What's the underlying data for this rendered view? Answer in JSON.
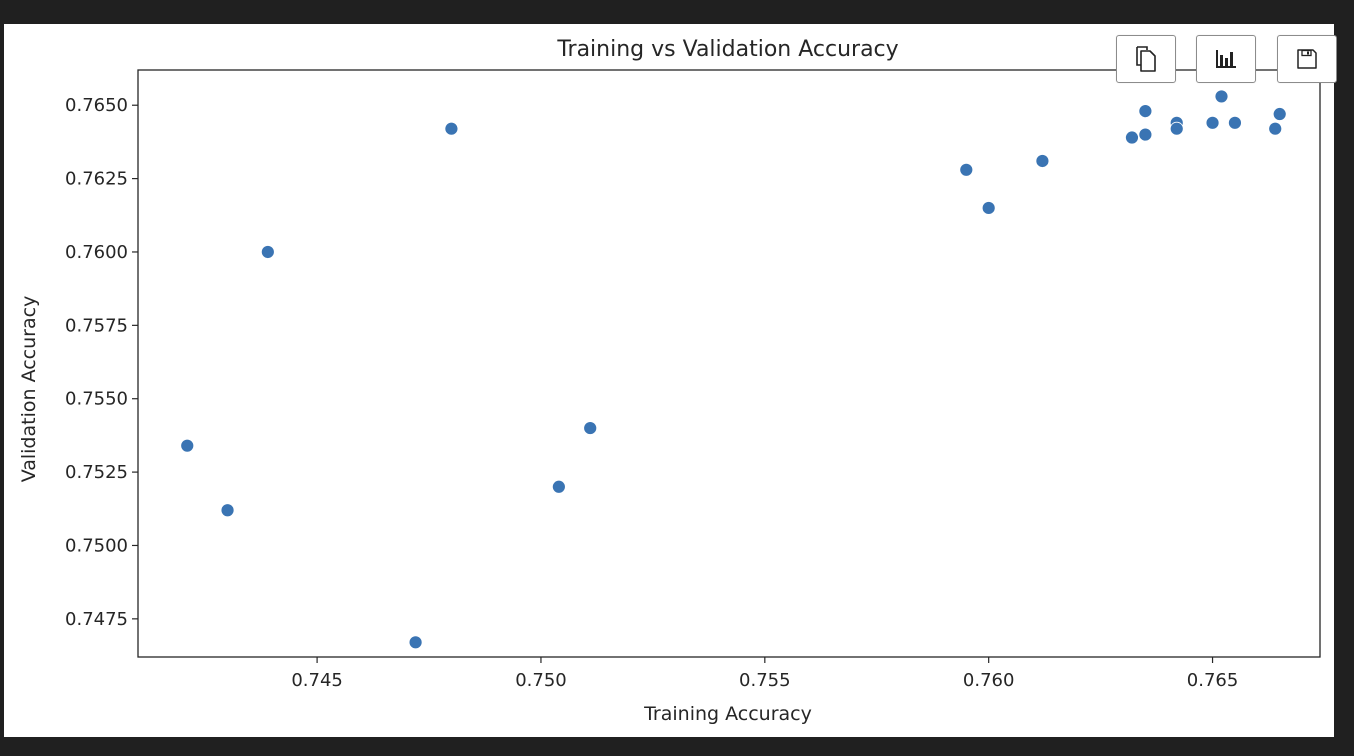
{
  "toolbar": {
    "buttons": [
      {
        "icon": "copy-icon"
      },
      {
        "icon": "bar-chart-icon"
      },
      {
        "icon": "save-icon"
      }
    ]
  },
  "colors": {
    "background": "#202020",
    "panel": "#ffffff",
    "point": "#3a74b3",
    "axis": "#262626"
  },
  "chart_data": {
    "type": "scatter",
    "title": "Training vs Validation Accuracy",
    "xlabel": "Training Accuracy",
    "ylabel": "Validation Accuracy",
    "xlim": [
      0.741,
      0.7674
    ],
    "ylim": [
      0.7462,
      0.7662
    ],
    "xticks": [
      0.745,
      0.75,
      0.755,
      0.76,
      0.765
    ],
    "xtick_labels": [
      "0.745",
      "0.750",
      "0.755",
      "0.760",
      "0.765"
    ],
    "yticks": [
      0.7475,
      0.75,
      0.7525,
      0.755,
      0.7575,
      0.76,
      0.7625,
      0.765
    ],
    "ytick_labels": [
      "0.7475",
      "0.7500",
      "0.7525",
      "0.7550",
      "0.7575",
      "0.7600",
      "0.7625",
      "0.7650"
    ],
    "grid": false,
    "points": [
      {
        "x": 0.7421,
        "y": 0.7534
      },
      {
        "x": 0.743,
        "y": 0.7512
      },
      {
        "x": 0.7439,
        "y": 0.76
      },
      {
        "x": 0.7472,
        "y": 0.7467
      },
      {
        "x": 0.748,
        "y": 0.7642
      },
      {
        "x": 0.7504,
        "y": 0.752
      },
      {
        "x": 0.7511,
        "y": 0.754
      },
      {
        "x": 0.7595,
        "y": 0.7628
      },
      {
        "x": 0.76,
        "y": 0.7615
      },
      {
        "x": 0.7612,
        "y": 0.7631
      },
      {
        "x": 0.7632,
        "y": 0.7639
      },
      {
        "x": 0.7635,
        "y": 0.764
      },
      {
        "x": 0.7635,
        "y": 0.7648
      },
      {
        "x": 0.7642,
        "y": 0.7644
      },
      {
        "x": 0.7642,
        "y": 0.7642
      },
      {
        "x": 0.765,
        "y": 0.7644
      },
      {
        "x": 0.7652,
        "y": 0.7653
      },
      {
        "x": 0.7655,
        "y": 0.7644
      },
      {
        "x": 0.7664,
        "y": 0.7642
      },
      {
        "x": 0.7665,
        "y": 0.7647
      }
    ]
  }
}
